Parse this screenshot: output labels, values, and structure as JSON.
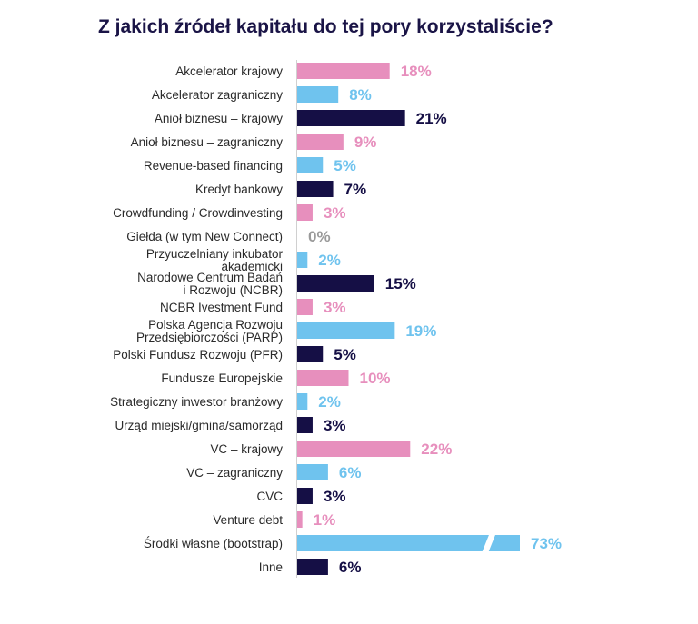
{
  "chart_data": {
    "type": "bar",
    "orientation": "horizontal",
    "title": "Z jakich źródeł kapitału do tej pory korzystaliście?",
    "value_suffix": "%",
    "axis_break_on": "Środki własne (bootstrap)",
    "colors": {
      "pink": "#e78fbd",
      "blue": "#6fc3ee",
      "navy": "#150f45",
      "zero": "#9a9a9a"
    },
    "bars": [
      {
        "label": [
          "Akcelerator krajowy"
        ],
        "value": 18,
        "color": "pink"
      },
      {
        "label": [
          "Akcelerator zagraniczny"
        ],
        "value": 8,
        "color": "blue"
      },
      {
        "label": [
          "Anioł biznesu – krajowy"
        ],
        "value": 21,
        "color": "navy"
      },
      {
        "label": [
          "Anioł biznesu – zagraniczny"
        ],
        "value": 9,
        "color": "pink"
      },
      {
        "label": [
          "Revenue-based financing"
        ],
        "value": 5,
        "color": "blue"
      },
      {
        "label": [
          "Kredyt bankowy"
        ],
        "value": 7,
        "color": "navy"
      },
      {
        "label": [
          "Crowdfunding / Crowdinvesting"
        ],
        "value": 3,
        "color": "pink"
      },
      {
        "label": [
          "Giełda (w tym New Connect)"
        ],
        "value": 0,
        "color": "zero"
      },
      {
        "label": [
          "Przyuczelniany inkubator",
          "akademicki"
        ],
        "value": 2,
        "color": "blue"
      },
      {
        "label": [
          "Narodowe Centrum Badań",
          "i Rozwoju (NCBR)"
        ],
        "value": 15,
        "color": "navy"
      },
      {
        "label": [
          "NCBR Ivestment Fund"
        ],
        "value": 3,
        "color": "pink"
      },
      {
        "label": [
          "Polska Agencja Rozwoju",
          "Przedsiębiorczości (PARP)"
        ],
        "value": 19,
        "color": "blue"
      },
      {
        "label": [
          "Polski Fundusz Rozwoju (PFR)"
        ],
        "value": 5,
        "color": "navy"
      },
      {
        "label": [
          "Fundusze Europejskie"
        ],
        "value": 10,
        "color": "pink"
      },
      {
        "label": [
          "Strategiczny inwestor branżowy"
        ],
        "value": 2,
        "color": "blue"
      },
      {
        "label": [
          "Urząd miejski/gmina/samorząd"
        ],
        "value": 3,
        "color": "navy"
      },
      {
        "label": [
          "VC – krajowy"
        ],
        "value": 22,
        "color": "pink"
      },
      {
        "label": [
          "VC – zagraniczny"
        ],
        "value": 6,
        "color": "blue"
      },
      {
        "label": [
          "CVC"
        ],
        "value": 3,
        "color": "navy"
      },
      {
        "label": [
          "Venture debt"
        ],
        "value": 1,
        "color": "pink"
      },
      {
        "label": [
          "Środki własne (bootstrap)"
        ],
        "value": 73,
        "color": "blue"
      },
      {
        "label": [
          "Inne"
        ],
        "value": 6,
        "color": "navy"
      }
    ]
  }
}
